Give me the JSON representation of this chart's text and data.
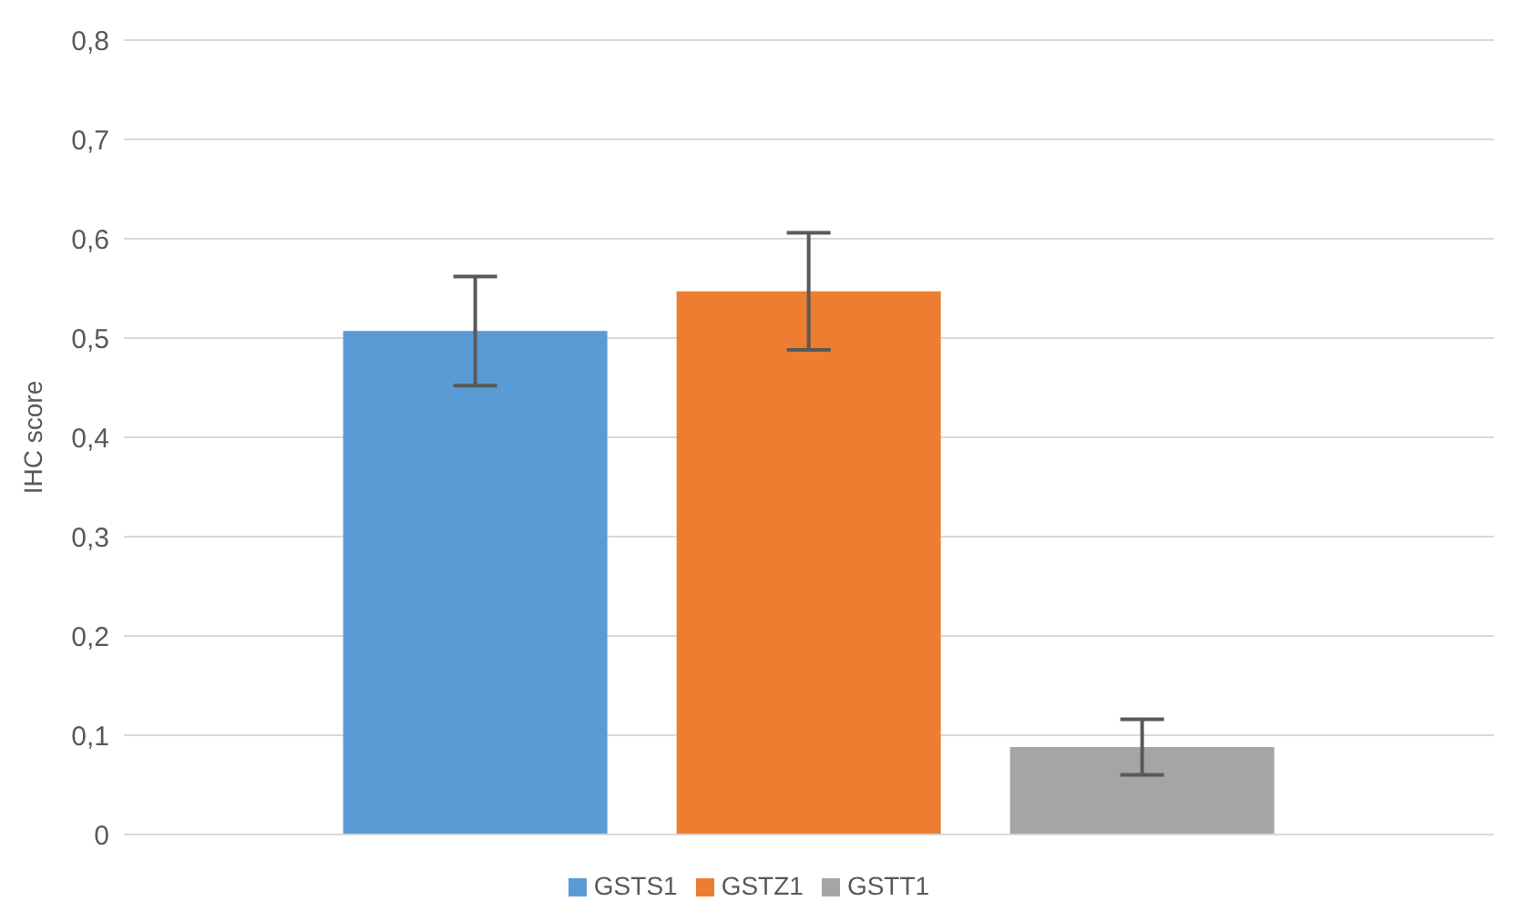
{
  "chart_data": {
    "type": "bar",
    "ylabel": "IHC score",
    "categories": [
      null
    ],
    "series": [
      {
        "name": "GSTS1",
        "color": "#5b9bd5",
        "values": [
          0.507
        ],
        "errors": [
          0.055
        ]
      },
      {
        "name": "GSTZ1",
        "color": "#ed7d31",
        "values": [
          0.547
        ],
        "errors": [
          0.059
        ]
      },
      {
        "name": "GSTT1",
        "color": "#a5a5a5",
        "values": [
          0.088
        ],
        "errors": [
          0.028
        ]
      }
    ],
    "ylim": [
      0,
      0.8
    ],
    "yticks": [
      0,
      {
        "value": 0.1,
        "label": "0,1"
      },
      {
        "value": 0.2,
        "label": "0,2"
      },
      {
        "value": 0.3,
        "label": "0,3"
      },
      {
        "value": 0.4,
        "label": "0,4"
      },
      {
        "value": 0.5,
        "label": "0,5"
      },
      {
        "value": 0.6,
        "label": "0,6"
      },
      {
        "value": 0.7,
        "label": "0,7"
      },
      {
        "value": 0.8,
        "label": "0,8"
      }
    ],
    "grid": "y",
    "legend": "bottom"
  }
}
